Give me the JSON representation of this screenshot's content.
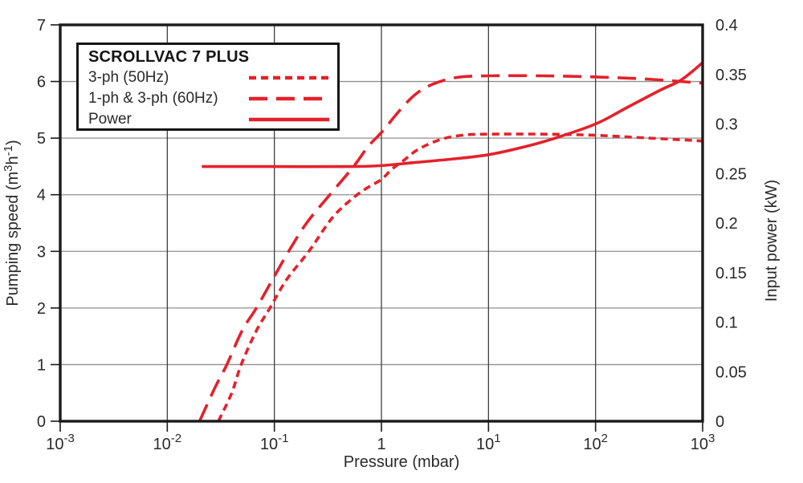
{
  "figure": {
    "background": "#ffffff",
    "curve_color": "#e4212b",
    "frame_color": "#1a1a1a",
    "grid_color_horizontal": "#8f8f8f",
    "grid_color_vertical": "#3f3f3f",
    "text_color": "#2a2a2a"
  },
  "legend": {
    "title": "SCROLLVAC 7 PLUS",
    "items": [
      {
        "label": "3-ph (50Hz)",
        "style": "dotted"
      },
      {
        "label": "1-ph & 3-ph (60Hz)",
        "style": "dashed"
      },
      {
        "label": "Power",
        "style": "solid"
      }
    ]
  },
  "chart_data": {
    "type": "line",
    "title": "SCROLLVAC 7 PLUS",
    "xlabel": "Pressure (mbar)",
    "ylabel_left": "Pumping speed (m³h⁻¹)",
    "ylabel_left_segments": [
      [
        "t",
        "Pumping speed (m"
      ],
      [
        "s",
        "3"
      ],
      [
        "t",
        "h"
      ],
      [
        "s",
        "-1"
      ],
      [
        "t",
        ")"
      ]
    ],
    "ylabel_right": "Input power (kW)",
    "x_scale": "log",
    "x_range_exponents": [
      -3,
      3
    ],
    "x_tick_exponents": [
      -3,
      -2,
      -1,
      0,
      1,
      2,
      3
    ],
    "y_left_range": [
      0,
      7
    ],
    "y_left_ticks": [
      0,
      1,
      2,
      3,
      4,
      5,
      6,
      7
    ],
    "y_right_range": [
      0,
      0.4
    ],
    "y_right_ticks": [
      0,
      0.05,
      0.1,
      0.15,
      0.2,
      0.25,
      0.3,
      0.35,
      0.4
    ],
    "grid": true,
    "legend_position": "upper-left",
    "series": [
      {
        "name": "3-ph (50Hz)",
        "axis": "speed",
        "dash": "dotted",
        "points": [
          [
            0.03,
            0
          ],
          [
            0.04,
            0.5
          ],
          [
            0.049,
            1.0
          ],
          [
            0.068,
            1.6
          ],
          [
            0.091,
            2.0
          ],
          [
            0.13,
            2.5
          ],
          [
            0.21,
            3.0
          ],
          [
            0.35,
            3.6
          ],
          [
            0.55,
            3.95
          ],
          [
            0.75,
            4.13
          ],
          [
            1.0,
            4.27
          ],
          [
            1.25,
            4.45
          ],
          [
            1.6,
            4.6
          ],
          [
            2.2,
            4.8
          ],
          [
            3.5,
            4.97
          ],
          [
            5.6,
            5.05
          ],
          [
            10,
            5.07
          ],
          [
            32,
            5.07
          ],
          [
            100,
            5.05
          ],
          [
            320,
            5.0
          ],
          [
            1000,
            4.95
          ]
        ]
      },
      {
        "name": "1-ph & 3-ph (60Hz)",
        "axis": "speed",
        "dash": "dashed",
        "points": [
          [
            0.02,
            0
          ],
          [
            0.028,
            0.6
          ],
          [
            0.036,
            1.0
          ],
          [
            0.05,
            1.6
          ],
          [
            0.068,
            2.0
          ],
          [
            0.1,
            2.56
          ],
          [
            0.136,
            3.0
          ],
          [
            0.2,
            3.5
          ],
          [
            0.33,
            4.0
          ],
          [
            0.55,
            4.5
          ],
          [
            0.75,
            4.85
          ],
          [
            1.0,
            5.1
          ],
          [
            1.5,
            5.5
          ],
          [
            2.1,
            5.78
          ],
          [
            3.0,
            5.95
          ],
          [
            5.0,
            6.07
          ],
          [
            10,
            6.1
          ],
          [
            32,
            6.1
          ],
          [
            100,
            6.08
          ],
          [
            320,
            6.04
          ],
          [
            1000,
            5.97
          ]
        ]
      },
      {
        "name": "Power",
        "axis": "power",
        "dash": "solid",
        "points": [
          [
            0.021,
            0.257
          ],
          [
            0.1,
            0.257
          ],
          [
            0.5,
            0.257
          ],
          [
            1.0,
            0.258
          ],
          [
            2.0,
            0.261
          ],
          [
            5.0,
            0.265
          ],
          [
            10,
            0.269
          ],
          [
            20,
            0.276
          ],
          [
            40,
            0.285
          ],
          [
            100,
            0.3
          ],
          [
            200,
            0.317
          ],
          [
            400,
            0.334
          ],
          [
            600,
            0.343
          ],
          [
            800,
            0.353
          ],
          [
            1000,
            0.362
          ]
        ]
      }
    ]
  }
}
